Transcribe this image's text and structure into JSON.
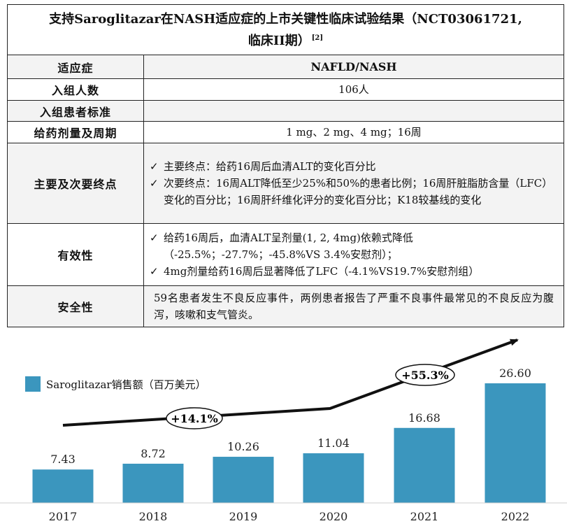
{
  "table": {
    "title_line1": "支持Saroglitazar在NASH适应症的上市关键性临床试验结果（NCT03061721,",
    "title_line2": "临床II期）",
    "title_ref": "[2]",
    "rows": [
      {
        "label": "适应症",
        "value": "NAFLD/NASH"
      },
      {
        "label": "入组人数",
        "value": "106人"
      },
      {
        "label": "入组患者标准",
        "value": ""
      },
      {
        "label": "给药剂量及周期",
        "value": "1 mg、2 mg、4 mg；16周"
      },
      {
        "label": "主要及次要终点",
        "items": [
          "主要终点：给药16周后血清ALT的变化百分比",
          "次要终点：16周ALT降低至少25%和50%的患者比例；16周肝脏脂肪含量（LFC）变化的百分比；16周肝纤维化评分的变化百分比；K18较基线的变化"
        ]
      },
      {
        "label": "有效性",
        "items": [
          " 给药16周后，血清ALT呈剂量(1, 2, 4mg)依赖式降低（-25.5%；-27.7%；-45.8%VS 3.4%安慰剂）；",
          "4mg剂量给药16周后显著降低了LFC（-4.1%VS19.7%安慰剂组）"
        ]
      },
      {
        "label": "安全性",
        "value": "59名患者发生不良反应事件，两例患者报告了严重不良事件最常见的不良反应为腹泻，咳嗽和支气管炎。"
      }
    ],
    "check_mark": "✓"
  },
  "chart_data": {
    "type": "bar",
    "categories": [
      "2017",
      "2018",
      "2019",
      "2020",
      "2021",
      "2022"
    ],
    "values": [
      7.43,
      8.72,
      10.26,
      11.04,
      16.68,
      26.6
    ],
    "value_labels": [
      "7.43",
      "8.72",
      "10.26",
      "11.04",
      "16.68",
      "26.60"
    ],
    "series": [
      {
        "name": "Saroglitazar销售额（百万美元）",
        "values": [
          7.43,
          8.72,
          10.26,
          11.04,
          16.68,
          26.6
        ]
      }
    ],
    "annotations": [
      "+14.1%",
      "+55.3%"
    ],
    "legend_position": "top-left",
    "bar_color": "#3b96be",
    "ylim": [
      0,
      26.6
    ]
  }
}
